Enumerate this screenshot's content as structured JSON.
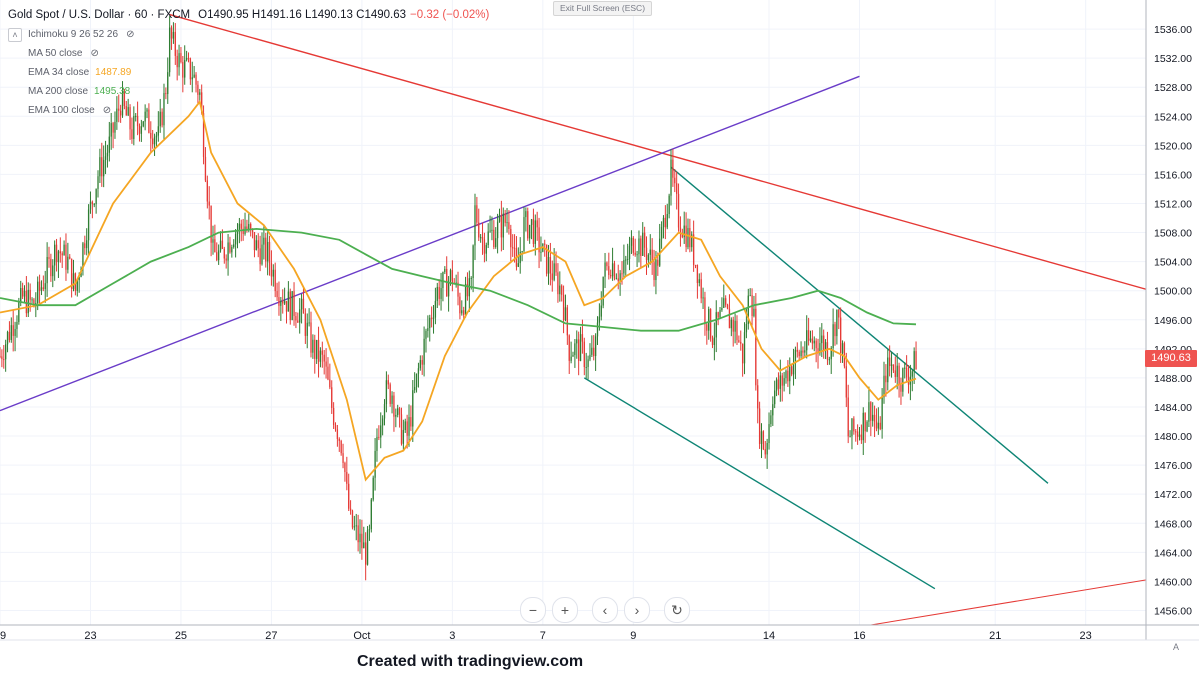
{
  "header": {
    "symbol": "Gold Spot / U.S. Dollar · 60 · FXCM",
    "open_label": "O",
    "open": "1490.95",
    "high_label": "H",
    "high": "1491.16",
    "low_label": "L",
    "low": "1490.13",
    "close_label": "C",
    "close": "1490.63",
    "change": "−0.32 (−0.02%)"
  },
  "indicators": [
    {
      "label": "Ichimoku 9 26 52 26",
      "value": "",
      "hidden": true,
      "color": "#787b86"
    },
    {
      "label": "MA 50 close",
      "value": "",
      "hidden": true,
      "color": "#787b86"
    },
    {
      "label": "EMA 34 close",
      "value": "1487.89",
      "hidden": false,
      "color": "#f5a623"
    },
    {
      "label": "MA 200 close",
      "value": "1495.38",
      "hidden": false,
      "color": "#4caf50"
    },
    {
      "label": "EMA 100 close",
      "value": "",
      "hidden": true,
      "color": "#787b86"
    }
  ],
  "toolbar": {
    "exit_fullscreen": "Exit Full Screen (ESC)",
    "zoom_out": "−",
    "zoom_in": "+",
    "scroll_left": "‹",
    "scroll_right": "›",
    "reset": "↻",
    "auto_scale": "A"
  },
  "last_price_label": "1490.63",
  "credit": "Created with tradingview.com",
  "colors": {
    "up": "#2e7d32",
    "down": "#e53935",
    "ema34": "#f5a623",
    "ma200": "#4caf50",
    "red_line": "#e53935",
    "purple_line": "#6a3cc8",
    "channel": "#0e8575"
  },
  "chart_data": {
    "type": "candlestick",
    "title": "Gold Spot / U.S. Dollar · 60 · FXCM",
    "ylim": [
      1454,
      1540
    ],
    "y_ticks": [
      1456,
      1460,
      1464,
      1468,
      1472,
      1476,
      1480,
      1484,
      1488,
      1492,
      1496,
      1500,
      1504,
      1508,
      1512,
      1516,
      1520,
      1524,
      1528,
      1532,
      1536
    ],
    "x_ticks": [
      {
        "label": "19",
        "i": 0
      },
      {
        "label": "23",
        "i": 48
      },
      {
        "label": "25",
        "i": 96
      },
      {
        "label": "27",
        "i": 144
      },
      {
        "label": "Oct",
        "i": 192
      },
      {
        "label": "3",
        "i": 240
      },
      {
        "label": "7",
        "i": 288
      },
      {
        "label": "9",
        "i": 336
      },
      {
        "label": "14",
        "i": 408
      },
      {
        "label": "16",
        "i": 456
      },
      {
        "label": "21",
        "i": 528
      },
      {
        "label": "23",
        "i": 576
      }
    ],
    "x_range": [
      0,
      608
    ],
    "price_path": [
      [
        0,
        1491
      ],
      [
        6,
        1495
      ],
      [
        12,
        1499
      ],
      [
        18,
        1498
      ],
      [
        24,
        1502
      ],
      [
        30,
        1506
      ],
      [
        36,
        1504
      ],
      [
        40,
        1500
      ],
      [
        46,
        1509
      ],
      [
        52,
        1516
      ],
      [
        58,
        1520
      ],
      [
        64,
        1526
      ],
      [
        70,
        1522
      ],
      [
        76,
        1524
      ],
      [
        84,
        1521
      ],
      [
        88,
        1528
      ],
      [
        90,
        1535
      ],
      [
        96,
        1531
      ],
      [
        102,
        1530
      ],
      [
        106,
        1527
      ],
      [
        110,
        1514
      ],
      [
        113,
        1505
      ],
      [
        118,
        1505
      ],
      [
        124,
        1508
      ],
      [
        130,
        1509
      ],
      [
        136,
        1506
      ],
      [
        142,
        1505
      ],
      [
        148,
        1500
      ],
      [
        154,
        1498
      ],
      [
        160,
        1497
      ],
      [
        166,
        1492
      ],
      [
        172,
        1490
      ],
      [
        176,
        1484
      ],
      [
        182,
        1478
      ],
      [
        184,
        1472
      ],
      [
        186,
        1468
      ],
      [
        190,
        1466
      ],
      [
        194,
        1464
      ],
      [
        196,
        1466
      ],
      [
        200,
        1480
      ],
      [
        204,
        1486
      ],
      [
        208,
        1486
      ],
      [
        212,
        1481
      ],
      [
        216,
        1480
      ],
      [
        222,
        1489
      ],
      [
        228,
        1496
      ],
      [
        232,
        1500
      ],
      [
        240,
        1502
      ],
      [
        244,
        1498
      ],
      [
        250,
        1500
      ],
      [
        252,
        1511
      ],
      [
        256,
        1507
      ],
      [
        262,
        1508
      ],
      [
        270,
        1510
      ],
      [
        274,
        1502
      ],
      [
        278,
        1509
      ],
      [
        282,
        1509
      ],
      [
        288,
        1505
      ],
      [
        292,
        1503
      ],
      [
        298,
        1500
      ],
      [
        302,
        1492
      ],
      [
        308,
        1492
      ],
      [
        312,
        1490
      ],
      [
        316,
        1492
      ],
      [
        320,
        1502
      ],
      [
        324,
        1504
      ],
      [
        330,
        1502
      ],
      [
        336,
        1507
      ],
      [
        342,
        1506
      ],
      [
        348,
        1503
      ],
      [
        352,
        1509
      ],
      [
        356,
        1516
      ],
      [
        360,
        1510
      ],
      [
        366,
        1507
      ],
      [
        370,
        1503
      ],
      [
        374,
        1497
      ],
      [
        378,
        1494
      ],
      [
        384,
        1497
      ],
      [
        390,
        1495
      ],
      [
        394,
        1491
      ],
      [
        398,
        1501
      ],
      [
        400,
        1496
      ],
      [
        402,
        1482
      ],
      [
        406,
        1478
      ],
      [
        410,
        1486
      ],
      [
        414,
        1487
      ],
      [
        420,
        1490
      ],
      [
        426,
        1492
      ],
      [
        430,
        1493
      ],
      [
        436,
        1493
      ],
      [
        440,
        1492
      ],
      [
        444,
        1497
      ],
      [
        448,
        1489
      ],
      [
        450,
        1480
      ],
      [
        456,
        1481
      ],
      [
        462,
        1484
      ],
      [
        466,
        1480
      ],
      [
        470,
        1489
      ],
      [
        474,
        1490
      ],
      [
        478,
        1488
      ],
      [
        484,
        1489
      ],
      [
        486,
        1490.63
      ]
    ],
    "series": [
      {
        "name": "EMA 34 close",
        "values": [
          [
            0,
            1497
          ],
          [
            20,
            1498
          ],
          [
            40,
            1501
          ],
          [
            60,
            1512
          ],
          [
            80,
            1519
          ],
          [
            100,
            1524
          ],
          [
            106,
            1526
          ],
          [
            112,
            1519
          ],
          [
            126,
            1512
          ],
          [
            140,
            1509
          ],
          [
            156,
            1503
          ],
          [
            170,
            1496
          ],
          [
            184,
            1485
          ],
          [
            194,
            1474
          ],
          [
            204,
            1477
          ],
          [
            214,
            1478
          ],
          [
            224,
            1482
          ],
          [
            236,
            1491
          ],
          [
            248,
            1497
          ],
          [
            262,
            1502
          ],
          [
            276,
            1505
          ],
          [
            288,
            1506
          ],
          [
            300,
            1504
          ],
          [
            310,
            1498
          ],
          [
            320,
            1499
          ],
          [
            332,
            1502
          ],
          [
            346,
            1504
          ],
          [
            360,
            1508
          ],
          [
            372,
            1507
          ],
          [
            382,
            1502
          ],
          [
            394,
            1498
          ],
          [
            404,
            1492
          ],
          [
            414,
            1489
          ],
          [
            428,
            1491
          ],
          [
            440,
            1492
          ],
          [
            448,
            1491
          ],
          [
            456,
            1488
          ],
          [
            466,
            1485
          ],
          [
            476,
            1487
          ],
          [
            486,
            1487.89
          ]
        ]
      },
      {
        "name": "MA 200 close",
        "values": [
          [
            0,
            1499
          ],
          [
            20,
            1498
          ],
          [
            40,
            1498
          ],
          [
            60,
            1501
          ],
          [
            80,
            1504
          ],
          [
            100,
            1506
          ],
          [
            116,
            1508
          ],
          [
            136,
            1508.5
          ],
          [
            160,
            1508
          ],
          [
            180,
            1507
          ],
          [
            194,
            1505
          ],
          [
            208,
            1503
          ],
          [
            224,
            1502
          ],
          [
            240,
            1501
          ],
          [
            260,
            1500
          ],
          [
            280,
            1498
          ],
          [
            300,
            1495.5
          ],
          [
            320,
            1495
          ],
          [
            340,
            1494.5
          ],
          [
            360,
            1494.5
          ],
          [
            380,
            1496
          ],
          [
            400,
            1498
          ],
          [
            420,
            1499
          ],
          [
            434,
            1500
          ],
          [
            446,
            1499
          ],
          [
            460,
            1497
          ],
          [
            474,
            1495.5
          ],
          [
            486,
            1495.38
          ]
        ]
      }
    ],
    "trendlines": [
      {
        "name": "red resistance",
        "from": [
          90,
          1538
        ],
        "to": [
          608,
          1500.2
        ]
      },
      {
        "name": "purple support",
        "from": [
          0,
          1483.5
        ],
        "to": [
          456,
          1529.5
        ]
      },
      {
        "name": "channel upper",
        "from": [
          356,
          1517
        ],
        "to": [
          556,
          1473.5
        ]
      },
      {
        "name": "channel lower",
        "from": [
          310,
          1488
        ],
        "to": [
          496,
          1459
        ]
      },
      {
        "name": "red rising",
        "from": [
          462,
          1454
        ],
        "to": [
          608,
          1460.2
        ]
      }
    ]
  }
}
